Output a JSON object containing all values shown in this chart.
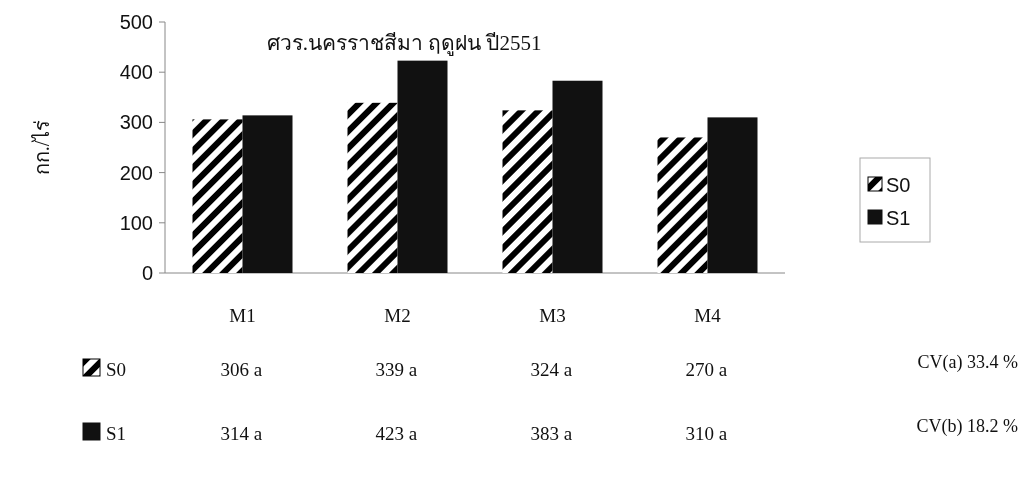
{
  "chart_data": {
    "type": "bar",
    "title": "ศวร.นครราชสีมา ฤดูฝน ปี2551",
    "ylabel": "กก./ไร่",
    "categories": [
      "M1",
      "M2",
      "M3",
      "M4"
    ],
    "series": [
      {
        "name": "S0",
        "color": "#000000",
        "values": [
          306,
          339,
          324,
          270
        ],
        "value_labels": [
          "306 a",
          "339 a",
          "324 a",
          "270 a"
        ]
      },
      {
        "name": "S1",
        "color": "#111111",
        "values": [
          314,
          423,
          383,
          310
        ],
        "value_labels": [
          "314 a",
          "423 a",
          "383 a",
          "310 a"
        ]
      }
    ],
    "ylim": [
      0,
      500
    ],
    "yticks": [
      0,
      100,
      200,
      300,
      400,
      500
    ],
    "grid": false,
    "legend": "right",
    "annotations": [
      "CV(a) 33.4 %",
      "CV(b) 18.2 %"
    ]
  }
}
